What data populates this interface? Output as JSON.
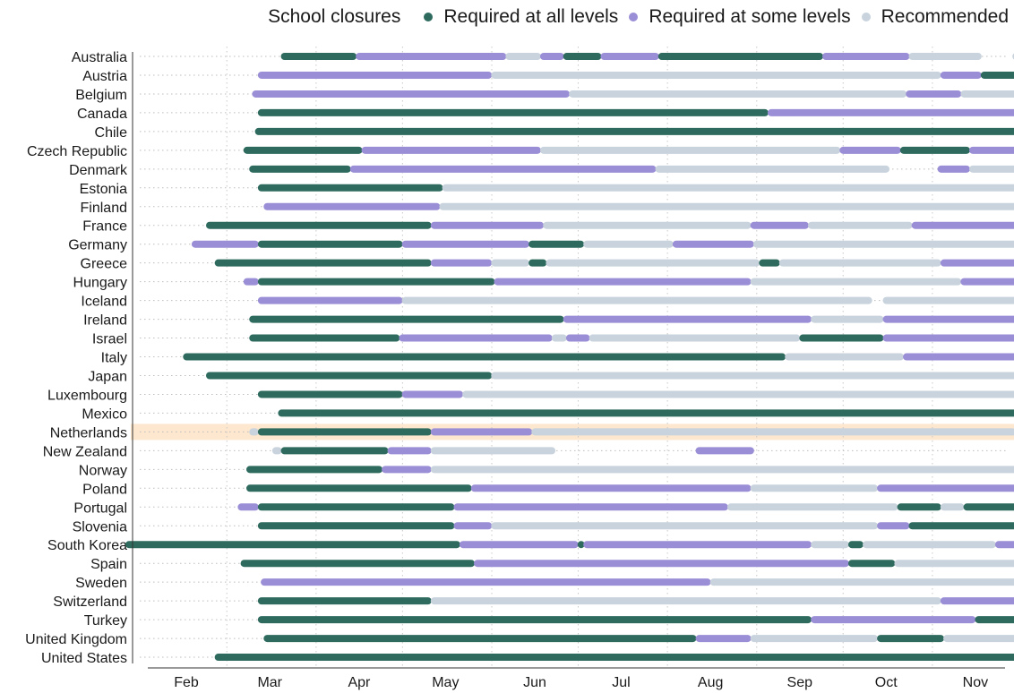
{
  "chart_data": {
    "type": "timeline",
    "year": 2020,
    "legend_title": "School closures",
    "legend": [
      {
        "key": "all",
        "label": "Required at all levels",
        "color": "#2e6b5e"
      },
      {
        "key": "some",
        "label": "Required at some levels",
        "color": "#9a8fd6"
      },
      {
        "key": "rec",
        "label": "Recommended",
        "color": "#c8d3dd"
      }
    ],
    "x_ticks": [
      {
        "label": "Feb",
        "date": "2020-02-15"
      },
      {
        "label": "Mar",
        "date": "2020-03-15"
      },
      {
        "label": "Apr",
        "date": "2020-04-15"
      },
      {
        "label": "May",
        "date": "2020-05-15"
      },
      {
        "label": "Jun",
        "date": "2020-06-15"
      },
      {
        "label": "Jul",
        "date": "2020-07-15"
      },
      {
        "label": "Aug",
        "date": "2020-08-15"
      },
      {
        "label": "Sep",
        "date": "2020-09-15"
      },
      {
        "label": "Oct",
        "date": "2020-10-15"
      },
      {
        "label": "Nov",
        "date": "2020-11-15"
      }
    ],
    "x_range": [
      "2020-02-01",
      "2020-11-30"
    ],
    "highlight_country": "Netherlands",
    "countries": [
      {
        "name": "Australia",
        "segments": [
          [
            "2020-03-19",
            "2020-04-14",
            "all"
          ],
          [
            "2020-04-14",
            "2020-06-05",
            "some"
          ],
          [
            "2020-06-05",
            "2020-06-17",
            "rec"
          ],
          [
            "2020-06-17",
            "2020-06-25",
            "some"
          ],
          [
            "2020-06-25",
            "2020-07-08",
            "all"
          ],
          [
            "2020-07-08",
            "2020-07-28",
            "some"
          ],
          [
            "2020-07-28",
            "2020-09-23",
            "all"
          ],
          [
            "2020-09-23",
            "2020-10-23",
            "some"
          ],
          [
            "2020-10-23",
            "2020-11-17",
            "rec"
          ],
          [
            "2020-11-28",
            "2020-11-30",
            "rec"
          ]
        ]
      },
      {
        "name": "Austria",
        "segments": [
          [
            "2020-03-11",
            "2020-05-31",
            "some"
          ],
          [
            "2020-05-31",
            "2020-11-03",
            "rec"
          ],
          [
            "2020-11-03",
            "2020-11-17",
            "some"
          ],
          [
            "2020-11-17",
            "2020-11-30",
            "all"
          ]
        ]
      },
      {
        "name": "Belgium",
        "segments": [
          [
            "2020-03-09",
            "2020-06-27",
            "some"
          ],
          [
            "2020-06-27",
            "2020-10-22",
            "rec"
          ],
          [
            "2020-10-22",
            "2020-11-10",
            "some"
          ],
          [
            "2020-11-10",
            "2020-11-30",
            "rec"
          ]
        ]
      },
      {
        "name": "Canada",
        "segments": [
          [
            "2020-03-11",
            "2020-09-04",
            "all"
          ],
          [
            "2020-09-04",
            "2020-11-30",
            "some"
          ]
        ]
      },
      {
        "name": "Chile",
        "segments": [
          [
            "2020-03-10",
            "2020-11-30",
            "all"
          ]
        ]
      },
      {
        "name": "Czech Republic",
        "segments": [
          [
            "2020-03-06",
            "2020-04-16",
            "all"
          ],
          [
            "2020-04-16",
            "2020-06-17",
            "some"
          ],
          [
            "2020-06-17",
            "2020-09-29",
            "rec"
          ],
          [
            "2020-09-29",
            "2020-10-20",
            "some"
          ],
          [
            "2020-10-20",
            "2020-11-13",
            "all"
          ],
          [
            "2020-11-13",
            "2020-11-30",
            "some"
          ]
        ]
      },
      {
        "name": "Denmark",
        "segments": [
          [
            "2020-03-08",
            "2020-04-12",
            "all"
          ],
          [
            "2020-04-12",
            "2020-07-27",
            "some"
          ],
          [
            "2020-07-27",
            "2020-10-16",
            "rec"
          ],
          [
            "2020-11-02",
            "2020-11-13",
            "some"
          ],
          [
            "2020-11-13",
            "2020-11-30",
            "rec"
          ]
        ]
      },
      {
        "name": "Estonia",
        "segments": [
          [
            "2020-03-11",
            "2020-05-14",
            "all"
          ],
          [
            "2020-05-14",
            "2020-11-30",
            "rec"
          ]
        ]
      },
      {
        "name": "Finland",
        "segments": [
          [
            "2020-03-13",
            "2020-05-13",
            "some"
          ],
          [
            "2020-05-13",
            "2020-11-30",
            "rec"
          ]
        ]
      },
      {
        "name": "France",
        "segments": [
          [
            "2020-02-22",
            "2020-05-10",
            "all"
          ],
          [
            "2020-05-10",
            "2020-06-18",
            "some"
          ],
          [
            "2020-06-18",
            "2020-08-29",
            "rec"
          ],
          [
            "2020-08-29",
            "2020-09-18",
            "some"
          ],
          [
            "2020-09-18",
            "2020-10-24",
            "rec"
          ],
          [
            "2020-10-24",
            "2020-11-30",
            "some"
          ]
        ]
      },
      {
        "name": "Germany",
        "segments": [
          [
            "2020-02-17",
            "2020-03-11",
            "some"
          ],
          [
            "2020-03-11",
            "2020-04-30",
            "all"
          ],
          [
            "2020-04-30",
            "2020-06-13",
            "some"
          ],
          [
            "2020-06-13",
            "2020-07-02",
            "all"
          ],
          [
            "2020-07-02",
            "2020-08-02",
            "rec"
          ],
          [
            "2020-08-02",
            "2020-08-30",
            "some"
          ],
          [
            "2020-08-30",
            "2020-11-30",
            "rec"
          ]
        ]
      },
      {
        "name": "Greece",
        "segments": [
          [
            "2020-02-25",
            "2020-05-10",
            "all"
          ],
          [
            "2020-05-10",
            "2020-05-31",
            "some"
          ],
          [
            "2020-05-31",
            "2020-06-13",
            "rec"
          ],
          [
            "2020-06-13",
            "2020-06-19",
            "all"
          ],
          [
            "2020-06-19",
            "2020-09-01",
            "rec"
          ],
          [
            "2020-09-01",
            "2020-09-08",
            "all"
          ],
          [
            "2020-09-08",
            "2020-11-03",
            "rec"
          ],
          [
            "2020-11-03",
            "2020-11-30",
            "some"
          ]
        ]
      },
      {
        "name": "Hungary",
        "segments": [
          [
            "2020-03-06",
            "2020-03-11",
            "some"
          ],
          [
            "2020-03-11",
            "2020-06-01",
            "all"
          ],
          [
            "2020-06-01",
            "2020-08-29",
            "some"
          ],
          [
            "2020-08-29",
            "2020-11-10",
            "rec"
          ],
          [
            "2020-11-10",
            "2020-11-30",
            "some"
          ]
        ]
      },
      {
        "name": "Iceland",
        "segments": [
          [
            "2020-03-11",
            "2020-04-30",
            "some"
          ],
          [
            "2020-04-30",
            "2020-10-10",
            "rec"
          ],
          [
            "2020-10-14",
            "2020-11-30",
            "rec"
          ]
        ]
      },
      {
        "name": "Ireland",
        "segments": [
          [
            "2020-03-08",
            "2020-06-25",
            "all"
          ],
          [
            "2020-06-25",
            "2020-09-19",
            "some"
          ],
          [
            "2020-09-19",
            "2020-10-14",
            "rec"
          ],
          [
            "2020-10-14",
            "2020-11-30",
            "some"
          ]
        ]
      },
      {
        "name": "Israel",
        "segments": [
          [
            "2020-03-08",
            "2020-04-29",
            "all"
          ],
          [
            "2020-04-29",
            "2020-06-21",
            "some"
          ],
          [
            "2020-06-21",
            "2020-06-26",
            "rec"
          ],
          [
            "2020-06-26",
            "2020-07-04",
            "some"
          ],
          [
            "2020-07-04",
            "2020-09-15",
            "rec"
          ],
          [
            "2020-09-15",
            "2020-10-14",
            "all"
          ],
          [
            "2020-10-14",
            "2020-11-30",
            "some"
          ]
        ]
      },
      {
        "name": "Italy",
        "segments": [
          [
            "2020-02-14",
            "2020-09-10",
            "all"
          ],
          [
            "2020-09-10",
            "2020-10-21",
            "rec"
          ],
          [
            "2020-10-21",
            "2020-11-30",
            "some"
          ]
        ]
      },
      {
        "name": "Japan",
        "segments": [
          [
            "2020-02-22",
            "2020-05-31",
            "all"
          ],
          [
            "2020-05-31",
            "2020-11-30",
            "rec"
          ]
        ]
      },
      {
        "name": "Luxembourg",
        "segments": [
          [
            "2020-03-11",
            "2020-04-30",
            "all"
          ],
          [
            "2020-04-30",
            "2020-05-21",
            "some"
          ],
          [
            "2020-05-21",
            "2020-11-30",
            "rec"
          ]
        ]
      },
      {
        "name": "Mexico",
        "segments": [
          [
            "2020-03-18",
            "2020-11-30",
            "all"
          ]
        ]
      },
      {
        "name": "Netherlands",
        "segments": [
          [
            "2020-03-08",
            "2020-03-11",
            "rec"
          ],
          [
            "2020-03-11",
            "2020-05-10",
            "all"
          ],
          [
            "2020-05-10",
            "2020-06-14",
            "some"
          ],
          [
            "2020-06-14",
            "2020-11-29",
            "rec"
          ]
        ]
      },
      {
        "name": "New Zealand",
        "segments": [
          [
            "2020-03-16",
            "2020-03-19",
            "rec"
          ],
          [
            "2020-03-19",
            "2020-04-25",
            "all"
          ],
          [
            "2020-04-25",
            "2020-05-10",
            "some"
          ],
          [
            "2020-05-10",
            "2020-06-22",
            "rec"
          ],
          [
            "2020-08-10",
            "2020-08-30",
            "some"
          ]
        ]
      },
      {
        "name": "Norway",
        "segments": [
          [
            "2020-03-07",
            "2020-04-23",
            "all"
          ],
          [
            "2020-04-23",
            "2020-05-10",
            "some"
          ],
          [
            "2020-05-10",
            "2020-11-30",
            "rec"
          ]
        ]
      },
      {
        "name": "Poland",
        "segments": [
          [
            "2020-03-07",
            "2020-05-24",
            "all"
          ],
          [
            "2020-05-24",
            "2020-08-29",
            "some"
          ],
          [
            "2020-08-29",
            "2020-10-12",
            "rec"
          ],
          [
            "2020-10-12",
            "2020-11-30",
            "some"
          ]
        ]
      },
      {
        "name": "Portugal",
        "segments": [
          [
            "2020-03-04",
            "2020-03-11",
            "some"
          ],
          [
            "2020-03-11",
            "2020-05-18",
            "all"
          ],
          [
            "2020-05-18",
            "2020-08-21",
            "some"
          ],
          [
            "2020-08-21",
            "2020-10-19",
            "rec"
          ],
          [
            "2020-10-19",
            "2020-11-03",
            "all"
          ],
          [
            "2020-11-03",
            "2020-11-11",
            "rec"
          ],
          [
            "2020-11-11",
            "2020-11-30",
            "all"
          ]
        ]
      },
      {
        "name": "Slovenia",
        "segments": [
          [
            "2020-03-11",
            "2020-05-18",
            "all"
          ],
          [
            "2020-05-18",
            "2020-05-31",
            "some"
          ],
          [
            "2020-05-31",
            "2020-10-12",
            "rec"
          ],
          [
            "2020-10-12",
            "2020-10-23",
            "some"
          ],
          [
            "2020-10-23",
            "2020-11-30",
            "all"
          ]
        ]
      },
      {
        "name": "South Korea",
        "segments": [
          [
            "2020-01-25",
            "2020-05-20",
            "all"
          ],
          [
            "2020-05-20",
            "2020-06-30",
            "some"
          ],
          [
            "2020-06-30",
            "2020-07-02",
            "all"
          ],
          [
            "2020-07-02",
            "2020-09-19",
            "some"
          ],
          [
            "2020-09-19",
            "2020-10-02",
            "rec"
          ],
          [
            "2020-10-02",
            "2020-10-07",
            "all"
          ],
          [
            "2020-10-07",
            "2020-11-22",
            "rec"
          ],
          [
            "2020-11-22",
            "2020-11-30",
            "some"
          ]
        ]
      },
      {
        "name": "Spain",
        "segments": [
          [
            "2020-03-05",
            "2020-05-25",
            "all"
          ],
          [
            "2020-05-25",
            "2020-10-02",
            "some"
          ],
          [
            "2020-10-02",
            "2020-10-18",
            "all"
          ],
          [
            "2020-10-18",
            "2020-11-30",
            "rec"
          ]
        ]
      },
      {
        "name": "Sweden",
        "segments": [
          [
            "2020-03-12",
            "2020-08-15",
            "some"
          ],
          [
            "2020-08-15",
            "2020-11-30",
            "rec"
          ]
        ]
      },
      {
        "name": "Switzerland",
        "segments": [
          [
            "2020-03-11",
            "2020-05-10",
            "all"
          ],
          [
            "2020-05-10",
            "2020-11-03",
            "rec"
          ],
          [
            "2020-11-03",
            "2020-11-30",
            "some"
          ]
        ]
      },
      {
        "name": "Turkey",
        "segments": [
          [
            "2020-03-11",
            "2020-09-19",
            "all"
          ],
          [
            "2020-09-19",
            "2020-11-15",
            "some"
          ],
          [
            "2020-11-15",
            "2020-11-30",
            "all"
          ]
        ]
      },
      {
        "name": "United Kingdom",
        "segments": [
          [
            "2020-03-13",
            "2020-08-10",
            "all"
          ],
          [
            "2020-08-10",
            "2020-08-29",
            "some"
          ],
          [
            "2020-08-29",
            "2020-10-12",
            "rec"
          ],
          [
            "2020-10-12",
            "2020-11-04",
            "all"
          ],
          [
            "2020-11-04",
            "2020-11-30",
            "rec"
          ]
        ]
      },
      {
        "name": "United States",
        "segments": [
          [
            "2020-02-25",
            "2020-11-30",
            "all"
          ]
        ]
      }
    ]
  }
}
